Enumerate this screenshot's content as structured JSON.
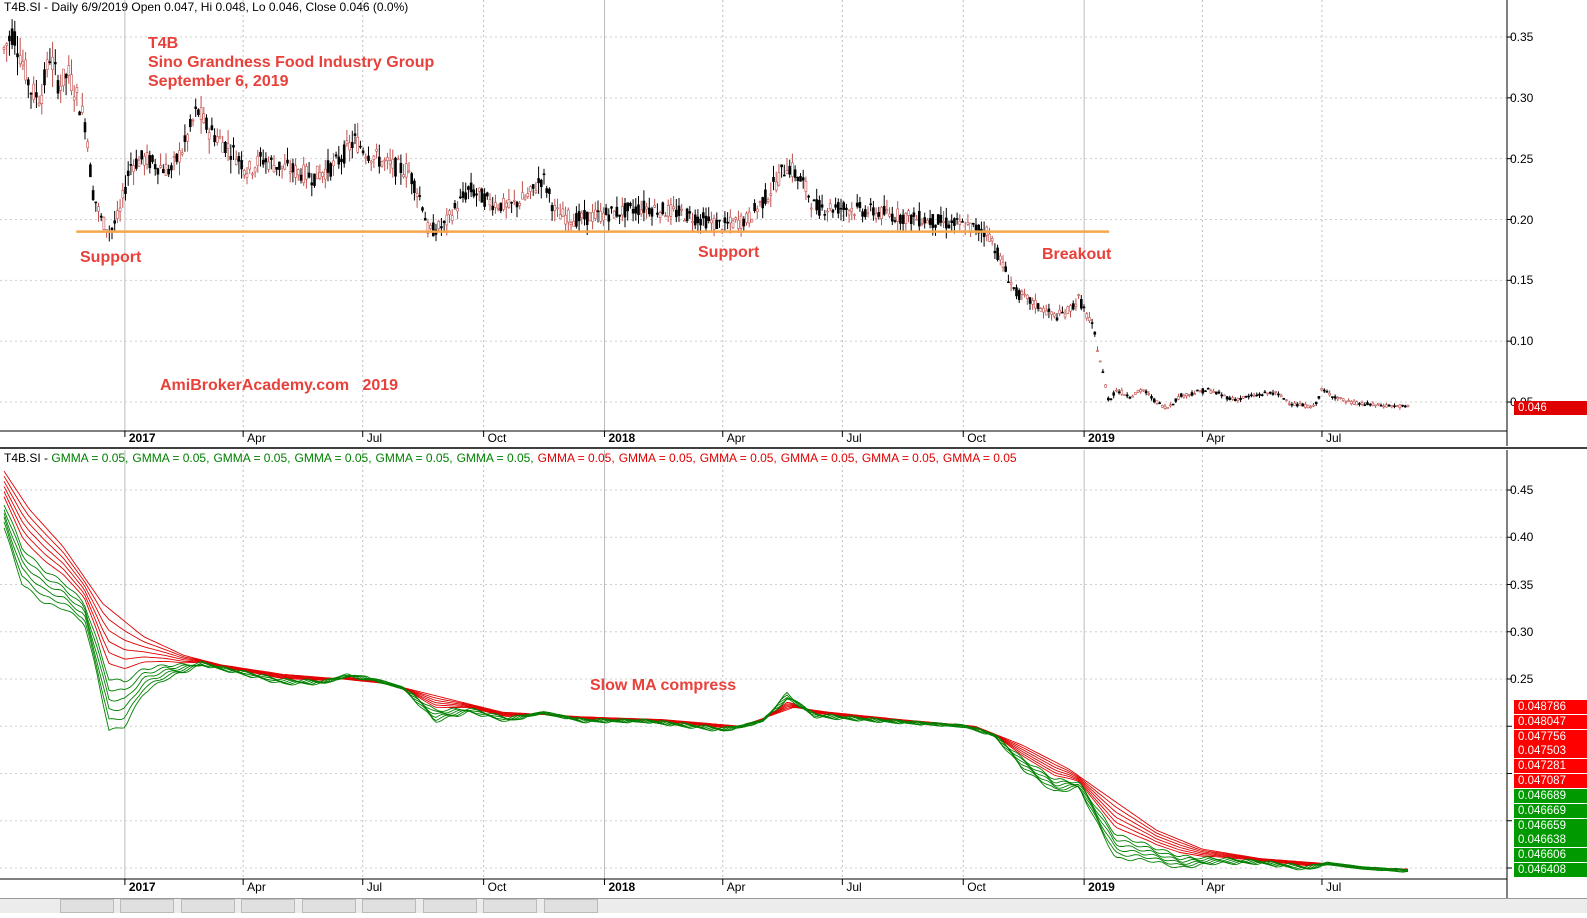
{
  "top_panel": {
    "title": "T4B.SI - Daily 6/9/2019 Open 0.047, Hi 0.048, Lo 0.046, Close 0.046 (0.0%)",
    "current_price_badge": "0.046",
    "annotations": {
      "ticker": "T4B",
      "company": "Sino Grandness Food Industry Group",
      "date": "September 6, 2019",
      "support_left": "Support",
      "support_mid": "Support",
      "breakout": "Breakout",
      "watermark": "AmiBrokerAcademy.com   2019"
    },
    "colors": {
      "annotation": "#e8403a",
      "support_line": "#f5a54a",
      "up_candle": "#c0504d",
      "down_candle": "#000000"
    }
  },
  "bottom_panel": {
    "title_prefix": "T4B.SI -",
    "legend": [
      {
        "label": "GMMA = 0.05,",
        "color": "#008000"
      },
      {
        "label": "GMMA = 0.05,",
        "color": "#008000"
      },
      {
        "label": "GMMA = 0.05,",
        "color": "#008000"
      },
      {
        "label": "GMMA = 0.05,",
        "color": "#008000"
      },
      {
        "label": "GMMA = 0.05,",
        "color": "#008000"
      },
      {
        "label": "GMMA = 0.05,",
        "color": "#008000"
      },
      {
        "label": "GMMA = 0.05,",
        "color": "#e00000"
      },
      {
        "label": "GMMA = 0.05,",
        "color": "#e00000"
      },
      {
        "label": "GMMA = 0.05,",
        "color": "#e00000"
      },
      {
        "label": "GMMA = 0.05,",
        "color": "#e00000"
      },
      {
        "label": "GMMA = 0.05,",
        "color": "#e00000"
      },
      {
        "label": "GMMA = 0.05",
        "color": "#e00000"
      }
    ],
    "annotation": "Slow MA compress",
    "value_badges_red": [
      "0.048786",
      "0.048047",
      "0.047756",
      "0.047503",
      "0.047281",
      "0.047087"
    ],
    "value_badges_green": [
      "0.046689",
      "0.046669",
      "0.046659",
      "0.046638",
      "0.046606",
      "0.046408"
    ],
    "colors": {
      "fast": "#008000",
      "slow": "#e00000"
    }
  },
  "x_axis_labels": [
    {
      "label": "2017",
      "year": true
    },
    {
      "label": "Apr",
      "year": false
    },
    {
      "label": "Jul",
      "year": false
    },
    {
      "label": "Oct",
      "year": false
    },
    {
      "label": "2018",
      "year": true
    },
    {
      "label": "Apr",
      "year": false
    },
    {
      "label": "Jul",
      "year": false
    },
    {
      "label": "Oct",
      "year": false
    },
    {
      "label": "2019",
      "year": true
    },
    {
      "label": "Apr",
      "year": false
    },
    {
      "label": "Jul",
      "year": false
    }
  ],
  "chart_data": [
    {
      "type": "candlestick",
      "title": "T4B.SI - Daily 6/9/2019 Open 0.047, Hi 0.048, Lo 0.046, Close 0.046 (0.0%)",
      "ylim": [
        0.025,
        0.36
      ],
      "yticks": [
        0.05,
        0.1,
        0.15,
        0.2,
        0.25,
        0.3,
        0.35
      ],
      "ytick_labels": [
        "0.05",
        "0.10",
        "0.15",
        "0.20",
        "0.25",
        "0.30",
        "0.35"
      ],
      "x_range": [
        "2016-10-01",
        "2019-09-06"
      ],
      "grid": true,
      "close_series": [
        [
          "2016-10-01",
          0.34
        ],
        [
          "2016-10-08",
          0.355
        ],
        [
          "2016-10-15",
          0.33
        ],
        [
          "2016-10-22",
          0.305
        ],
        [
          "2016-10-29",
          0.3
        ],
        [
          "2016-11-05",
          0.335
        ],
        [
          "2016-11-12",
          0.31
        ],
        [
          "2016-11-19",
          0.32
        ],
        [
          "2016-11-26",
          0.3
        ],
        [
          "2016-12-03",
          0.275
        ],
        [
          "2016-12-07",
          0.225
        ],
        [
          "2016-12-14",
          0.2
        ],
        [
          "2016-12-21",
          0.19
        ],
        [
          "2016-12-28",
          0.205
        ],
        [
          "2017-01-05",
          0.245
        ],
        [
          "2017-01-15",
          0.25
        ],
        [
          "2017-01-25",
          0.245
        ],
        [
          "2017-02-05",
          0.24
        ],
        [
          "2017-02-15",
          0.26
        ],
        [
          "2017-02-25",
          0.29
        ],
        [
          "2017-03-05",
          0.275
        ],
        [
          "2017-03-15",
          0.265
        ],
        [
          "2017-03-25",
          0.255
        ],
        [
          "2017-04-05",
          0.24
        ],
        [
          "2017-04-15",
          0.25
        ],
        [
          "2017-04-25",
          0.245
        ],
        [
          "2017-05-10",
          0.24
        ],
        [
          "2017-05-25",
          0.235
        ],
        [
          "2017-06-10",
          0.245
        ],
        [
          "2017-06-25",
          0.265
        ],
        [
          "2017-07-05",
          0.255
        ],
        [
          "2017-07-20",
          0.245
        ],
        [
          "2017-08-05",
          0.24
        ],
        [
          "2017-08-15",
          0.215
        ],
        [
          "2017-08-20",
          0.19
        ],
        [
          "2017-09-01",
          0.195
        ],
        [
          "2017-09-10",
          0.21
        ],
        [
          "2017-09-20",
          0.225
        ],
        [
          "2017-10-05",
          0.215
        ],
        [
          "2017-10-20",
          0.21
        ],
        [
          "2017-11-05",
          0.22
        ],
        [
          "2017-11-15",
          0.235
        ],
        [
          "2017-11-25",
          0.205
        ],
        [
          "2017-12-10",
          0.2
        ],
        [
          "2018-01-05",
          0.205
        ],
        [
          "2018-02-01",
          0.21
        ],
        [
          "2018-03-01",
          0.205
        ],
        [
          "2018-04-01",
          0.195
        ],
        [
          "2018-04-20",
          0.2
        ],
        [
          "2018-05-05",
          0.22
        ],
        [
          "2018-05-20",
          0.245
        ],
        [
          "2018-06-01",
          0.23
        ],
        [
          "2018-06-10",
          0.21
        ],
        [
          "2018-07-01",
          0.21
        ],
        [
          "2018-08-01",
          0.205
        ],
        [
          "2018-09-01",
          0.2
        ],
        [
          "2018-10-01",
          0.195
        ],
        [
          "2018-10-20",
          0.19
        ],
        [
          "2018-10-30",
          0.165
        ],
        [
          "2018-11-10",
          0.14
        ],
        [
          "2018-11-25",
          0.13
        ],
        [
          "2018-12-10",
          0.12
        ],
        [
          "2018-12-20",
          0.125
        ],
        [
          "2018-12-28",
          0.135
        ],
        [
          "2019-01-08",
          0.11
        ],
        [
          "2019-01-15",
          0.075
        ],
        [
          "2019-01-20",
          0.05
        ],
        [
          "2019-01-25",
          0.06
        ],
        [
          "2019-02-05",
          0.055
        ],
        [
          "2019-02-15",
          0.06
        ],
        [
          "2019-02-25",
          0.05
        ],
        [
          "2019-03-05",
          0.045
        ],
        [
          "2019-03-15",
          0.055
        ],
        [
          "2019-04-05",
          0.06
        ],
        [
          "2019-04-25",
          0.052
        ],
        [
          "2019-05-10",
          0.055
        ],
        [
          "2019-05-25",
          0.058
        ],
        [
          "2019-06-10",
          0.048
        ],
        [
          "2019-06-25",
          0.046
        ],
        [
          "2019-07-01",
          0.06
        ],
        [
          "2019-07-10",
          0.055
        ],
        [
          "2019-07-20",
          0.05
        ],
        [
          "2019-08-05",
          0.048
        ],
        [
          "2019-08-20",
          0.047
        ],
        [
          "2019-09-06",
          0.046
        ]
      ],
      "support_level": 0.19,
      "support_line_range": [
        "2016-11-25",
        "2019-01-20"
      ]
    },
    {
      "type": "line",
      "title": "T4B.SI - GMMA",
      "ylim": [
        0.0,
        0.48
      ],
      "yticks": [
        0.25,
        0.3,
        0.35,
        0.4,
        0.45
      ],
      "ytick_labels": [
        "0.25",
        "0.30",
        "0.35",
        "0.40",
        "0.45"
      ],
      "grid": true,
      "fast_group_count": 6,
      "slow_group_count": 6,
      "fast_lower_series": [
        [
          "2016-10-01",
          0.41
        ],
        [
          "2016-10-15",
          0.35
        ],
        [
          "2016-11-01",
          0.33
        ],
        [
          "2016-11-15",
          0.325
        ],
        [
          "2016-12-01",
          0.31
        ],
        [
          "2016-12-10",
          0.26
        ],
        [
          "2016-12-20",
          0.195
        ],
        [
          "2017-01-01",
          0.2
        ],
        [
          "2017-01-15",
          0.235
        ],
        [
          "2017-02-01",
          0.25
        ],
        [
          "2017-03-01",
          0.265
        ],
        [
          "2017-04-01",
          0.255
        ],
        [
          "2017-05-01",
          0.245
        ],
        [
          "2017-06-01",
          0.245
        ],
        [
          "2017-06-20",
          0.255
        ],
        [
          "2017-07-10",
          0.25
        ],
        [
          "2017-08-01",
          0.24
        ],
        [
          "2017-08-25",
          0.205
        ],
        [
          "2017-09-20",
          0.215
        ],
        [
          "2017-10-20",
          0.205
        ],
        [
          "2017-11-15",
          0.215
        ],
        [
          "2017-12-15",
          0.205
        ],
        [
          "2018-02-01",
          0.205
        ],
        [
          "2018-04-01",
          0.195
        ],
        [
          "2018-05-01",
          0.205
        ],
        [
          "2018-05-20",
          0.235
        ],
        [
          "2018-06-10",
          0.21
        ],
        [
          "2018-08-01",
          0.205
        ],
        [
          "2018-10-01",
          0.2
        ],
        [
          "2018-10-25",
          0.19
        ],
        [
          "2018-11-15",
          0.155
        ],
        [
          "2018-12-10",
          0.13
        ],
        [
          "2018-12-28",
          0.135
        ],
        [
          "2019-01-10",
          0.1
        ],
        [
          "2019-01-25",
          0.06
        ],
        [
          "2019-02-20",
          0.058
        ],
        [
          "2019-03-15",
          0.05
        ],
        [
          "2019-04-10",
          0.055
        ],
        [
          "2019-05-15",
          0.055
        ],
        [
          "2019-06-20",
          0.048
        ],
        [
          "2019-07-05",
          0.055
        ],
        [
          "2019-08-01",
          0.05
        ],
        [
          "2019-09-06",
          0.0464
        ]
      ],
      "slow_upper_series": [
        [
          "2016-10-01",
          0.47
        ],
        [
          "2016-10-20",
          0.43
        ],
        [
          "2016-11-15",
          0.39
        ],
        [
          "2016-12-15",
          0.33
        ],
        [
          "2017-01-15",
          0.295
        ],
        [
          "2017-02-15",
          0.275
        ],
        [
          "2017-03-15",
          0.265
        ],
        [
          "2017-05-01",
          0.255
        ],
        [
          "2017-06-15",
          0.25
        ],
        [
          "2017-07-20",
          0.245
        ],
        [
          "2017-09-01",
          0.23
        ],
        [
          "2017-10-15",
          0.215
        ],
        [
          "2017-12-15",
          0.21
        ],
        [
          "2018-02-15",
          0.207
        ],
        [
          "2018-04-15",
          0.2
        ],
        [
          "2018-05-25",
          0.22
        ],
        [
          "2018-06-20",
          0.215
        ],
        [
          "2018-08-15",
          0.207
        ],
        [
          "2018-10-10",
          0.2
        ],
        [
          "2018-11-15",
          0.18
        ],
        [
          "2018-12-20",
          0.155
        ],
        [
          "2019-01-25",
          0.12
        ],
        [
          "2019-02-25",
          0.09
        ],
        [
          "2019-04-01",
          0.07
        ],
        [
          "2019-05-15",
          0.06
        ],
        [
          "2019-07-01",
          0.055
        ],
        [
          "2019-08-01",
          0.05
        ],
        [
          "2019-09-06",
          0.0488
        ]
      ],
      "annotation": "Slow MA compress"
    }
  ]
}
